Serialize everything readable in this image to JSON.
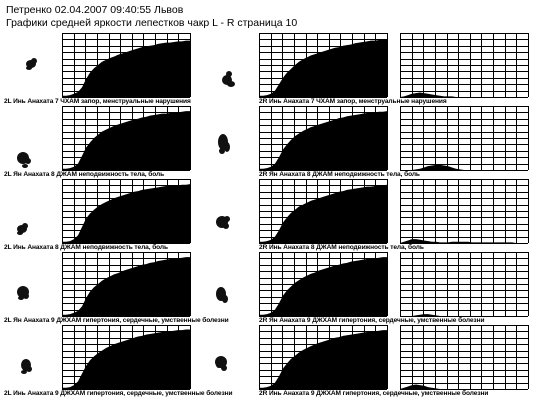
{
  "header": {
    "line1": "Петренко 02.04.2007 09:40:55 Львов",
    "line2": "Графики средней яркости лепестков чакр L - R страница 10"
  },
  "colors": {
    "fill": "#000000",
    "grid": "#000000",
    "background": "#ffffff"
  },
  "chart_data": [
    {
      "type": "area",
      "title": "2L Инь Анахата 7 ЧХАМ запор, менструальные нарушения",
      "series": [
        {
          "values": [
            0.02,
            0.02,
            0.03,
            0.05,
            0.08,
            0.15,
            0.28,
            0.38,
            0.45,
            0.5,
            0.55,
            0.58,
            0.61,
            0.63,
            0.66,
            0.68,
            0.7,
            0.72,
            0.74,
            0.76,
            0.78,
            0.79,
            0.8,
            0.81,
            0.83,
            0.84,
            0.85,
            0.85,
            0.86,
            0.87,
            0.87,
            0.88,
            0.88
          ]
        }
      ]
    },
    {
      "type": "area",
      "title": "2R Инь Анахата 7 ЧХАМ запор, менструальные нарушения",
      "series": [
        {
          "values": [
            0.02,
            0.02,
            0.03,
            0.05,
            0.1,
            0.2,
            0.3,
            0.38,
            0.44,
            0.5,
            0.55,
            0.59,
            0.62,
            0.65,
            0.67,
            0.69,
            0.71,
            0.73,
            0.75,
            0.77,
            0.78,
            0.8,
            0.81,
            0.82,
            0.84,
            0.85,
            0.86,
            0.87,
            0.88,
            0.88,
            0.89,
            0.9,
            0.9
          ]
        }
      ]
    },
    {
      "type": "area",
      "title": "2R Инь Анахата 7 ЧХАМ запор, менструальные нарушения",
      "series": [
        {
          "values": [
            0,
            0.01,
            0.03,
            0.05,
            0.06,
            0.07,
            0.06,
            0.05,
            0.04,
            0.03,
            0.02,
            0.01,
            0.01,
            0.01,
            0,
            0,
            0,
            0,
            0,
            0,
            0,
            0,
            0,
            0,
            0,
            0,
            0,
            0,
            0,
            0,
            0,
            0,
            0
          ]
        }
      ]
    },
    {
      "type": "area",
      "title": "2L Ян Анахата 8 ДЖАМ неподвижность тела, боль",
      "series": [
        {
          "values": [
            0.02,
            0.02,
            0.03,
            0.05,
            0.1,
            0.22,
            0.35,
            0.43,
            0.5,
            0.55,
            0.6,
            0.63,
            0.66,
            0.69,
            0.71,
            0.73,
            0.75,
            0.77,
            0.79,
            0.8,
            0.82,
            0.83,
            0.85,
            0.86,
            0.87,
            0.88,
            0.88,
            0.89,
            0.9,
            0.9,
            0.91,
            0.92,
            0.92
          ]
        }
      ]
    },
    {
      "type": "area",
      "title": "2R Ян Анахата 8 ДЖАМ неподвижность тела, боль",
      "series": [
        {
          "values": [
            0.02,
            0.02,
            0.03,
            0.05,
            0.1,
            0.2,
            0.32,
            0.4,
            0.47,
            0.53,
            0.57,
            0.61,
            0.64,
            0.67,
            0.69,
            0.71,
            0.73,
            0.75,
            0.77,
            0.79,
            0.81,
            0.82,
            0.84,
            0.85,
            0.86,
            0.87,
            0.88,
            0.89,
            0.9,
            0.9,
            0.91,
            0.91,
            0.92
          ]
        }
      ]
    },
    {
      "type": "area",
      "title": "2R Ян Анахата 8 ДЖАМ неподвижность тела, боль",
      "series": [
        {
          "values": [
            0,
            0,
            0,
            0,
            0.01,
            0.02,
            0.04,
            0.06,
            0.07,
            0.08,
            0.08,
            0.07,
            0.06,
            0.04,
            0.02,
            0.01,
            0,
            0,
            0,
            0,
            0,
            0,
            0,
            0,
            0,
            0,
            0,
            0,
            0,
            0,
            0,
            0,
            0
          ]
        }
      ]
    },
    {
      "type": "area",
      "title": "2L Инь Анахата 8 ДЖАМ неподвижность тела, боль",
      "series": [
        {
          "values": [
            0.02,
            0.02,
            0.03,
            0.06,
            0.12,
            0.25,
            0.38,
            0.46,
            0.52,
            0.57,
            0.61,
            0.64,
            0.67,
            0.7,
            0.72,
            0.74,
            0.76,
            0.78,
            0.8,
            0.81,
            0.83,
            0.84,
            0.85,
            0.86,
            0.87,
            0.88,
            0.89,
            0.89,
            0.9,
            0.9,
            0.91,
            0.91,
            0.92
          ]
        }
      ]
    },
    {
      "type": "area",
      "title": "2R Инь Анахата 8 ДЖАМ неподвижность тела, боль",
      "series": [
        {
          "values": [
            0.02,
            0.02,
            0.03,
            0.05,
            0.1,
            0.2,
            0.32,
            0.4,
            0.47,
            0.52,
            0.57,
            0.6,
            0.63,
            0.66,
            0.68,
            0.7,
            0.72,
            0.74,
            0.76,
            0.78,
            0.8,
            0.81,
            0.83,
            0.84,
            0.85,
            0.86,
            0.87,
            0.88,
            0.88,
            0.89,
            0.9,
            0.9,
            0.91
          ]
        }
      ]
    },
    {
      "type": "area",
      "title": "2R Инь Анахата 8 ДЖАМ неподвижность тела, боль",
      "series": [
        {
          "values": [
            0,
            0.02,
            0.04,
            0.06,
            0.06,
            0.05,
            0.04,
            0.03,
            0.02,
            0.02,
            0.01,
            0.01,
            0.01,
            0.02,
            0.02,
            0.02,
            0.02,
            0.02,
            0.01,
            0.01,
            0.01,
            0.01,
            0.01,
            0.01,
            0.01,
            0.01,
            0.01,
            0.01,
            0.01,
            0,
            0,
            0,
            0
          ]
        }
      ]
    },
    {
      "type": "area",
      "title": "2L Ян Анахата 9 ДЖХАМ гипертония, сердечные, умственные болезни",
      "series": [
        {
          "values": [
            0.02,
            0.02,
            0.03,
            0.05,
            0.08,
            0.15,
            0.28,
            0.38,
            0.45,
            0.5,
            0.55,
            0.59,
            0.62,
            0.65,
            0.67,
            0.7,
            0.72,
            0.74,
            0.76,
            0.78,
            0.8,
            0.81,
            0.83,
            0.84,
            0.86,
            0.87,
            0.88,
            0.89,
            0.9,
            0.9,
            0.91,
            0.92,
            0.92
          ]
        }
      ]
    },
    {
      "type": "area",
      "title": "2R Ян Анахата 9 ДЖХАМ гипертония, сердечные, умственные болезни",
      "series": [
        {
          "values": [
            0.02,
            0.02,
            0.03,
            0.05,
            0.1,
            0.2,
            0.32,
            0.4,
            0.46,
            0.52,
            0.56,
            0.6,
            0.63,
            0.66,
            0.68,
            0.71,
            0.73,
            0.75,
            0.77,
            0.79,
            0.8,
            0.82,
            0.83,
            0.85,
            0.86,
            0.87,
            0.88,
            0.89,
            0.9,
            0.9,
            0.91,
            0.92,
            0.92
          ]
        }
      ]
    },
    {
      "type": "area",
      "title": "2R Ян Анахата 9 ДЖХАМ гипертония, сердечные, умственные болезни",
      "series": [
        {
          "values": [
            0,
            0,
            0,
            0,
            0.01,
            0.02,
            0.03,
            0.03,
            0.02,
            0.01,
            0,
            0,
            0,
            0,
            0,
            0,
            0,
            0,
            0,
            0,
            0,
            0,
            0,
            0,
            0,
            0,
            0,
            0,
            0,
            0,
            0,
            0,
            0
          ]
        }
      ]
    },
    {
      "type": "area",
      "title": "2L Инь Анахата 9 ДЖХАМ гипертония, сердечные, умственные болезни",
      "series": [
        {
          "values": [
            0.02,
            0.02,
            0.03,
            0.06,
            0.12,
            0.24,
            0.36,
            0.45,
            0.51,
            0.56,
            0.6,
            0.64,
            0.67,
            0.7,
            0.72,
            0.74,
            0.76,
            0.78,
            0.8,
            0.82,
            0.83,
            0.85,
            0.86,
            0.87,
            0.88,
            0.89,
            0.9,
            0.9,
            0.91,
            0.92,
            0.92,
            0.93,
            0.93
          ]
        }
      ]
    },
    {
      "type": "area",
      "title": "2R Инь Анахата 9 ДЖХАМ гипертония, сердечные, умственные болезни",
      "series": [
        {
          "values": [
            0.02,
            0.02,
            0.03,
            0.05,
            0.1,
            0.2,
            0.32,
            0.4,
            0.47,
            0.52,
            0.57,
            0.61,
            0.64,
            0.67,
            0.7,
            0.72,
            0.74,
            0.76,
            0.78,
            0.8,
            0.81,
            0.83,
            0.84,
            0.85,
            0.86,
            0.87,
            0.88,
            0.89,
            0.9,
            0.9,
            0.91,
            0.92,
            0.92
          ]
        }
      ]
    },
    {
      "type": "area",
      "title": "2R Инь Анахата 9 ДЖХАМ гипертония, сердечные, умственные болезни",
      "series": [
        {
          "values": [
            0,
            0.02,
            0.04,
            0.06,
            0.07,
            0.06,
            0.05,
            0.03,
            0.02,
            0.01,
            0,
            0,
            0,
            0,
            0,
            0,
            0,
            0,
            0,
            0,
            0,
            0,
            0,
            0,
            0,
            0,
            0,
            0,
            0,
            0,
            0,
            0,
            0
          ]
        }
      ]
    }
  ]
}
